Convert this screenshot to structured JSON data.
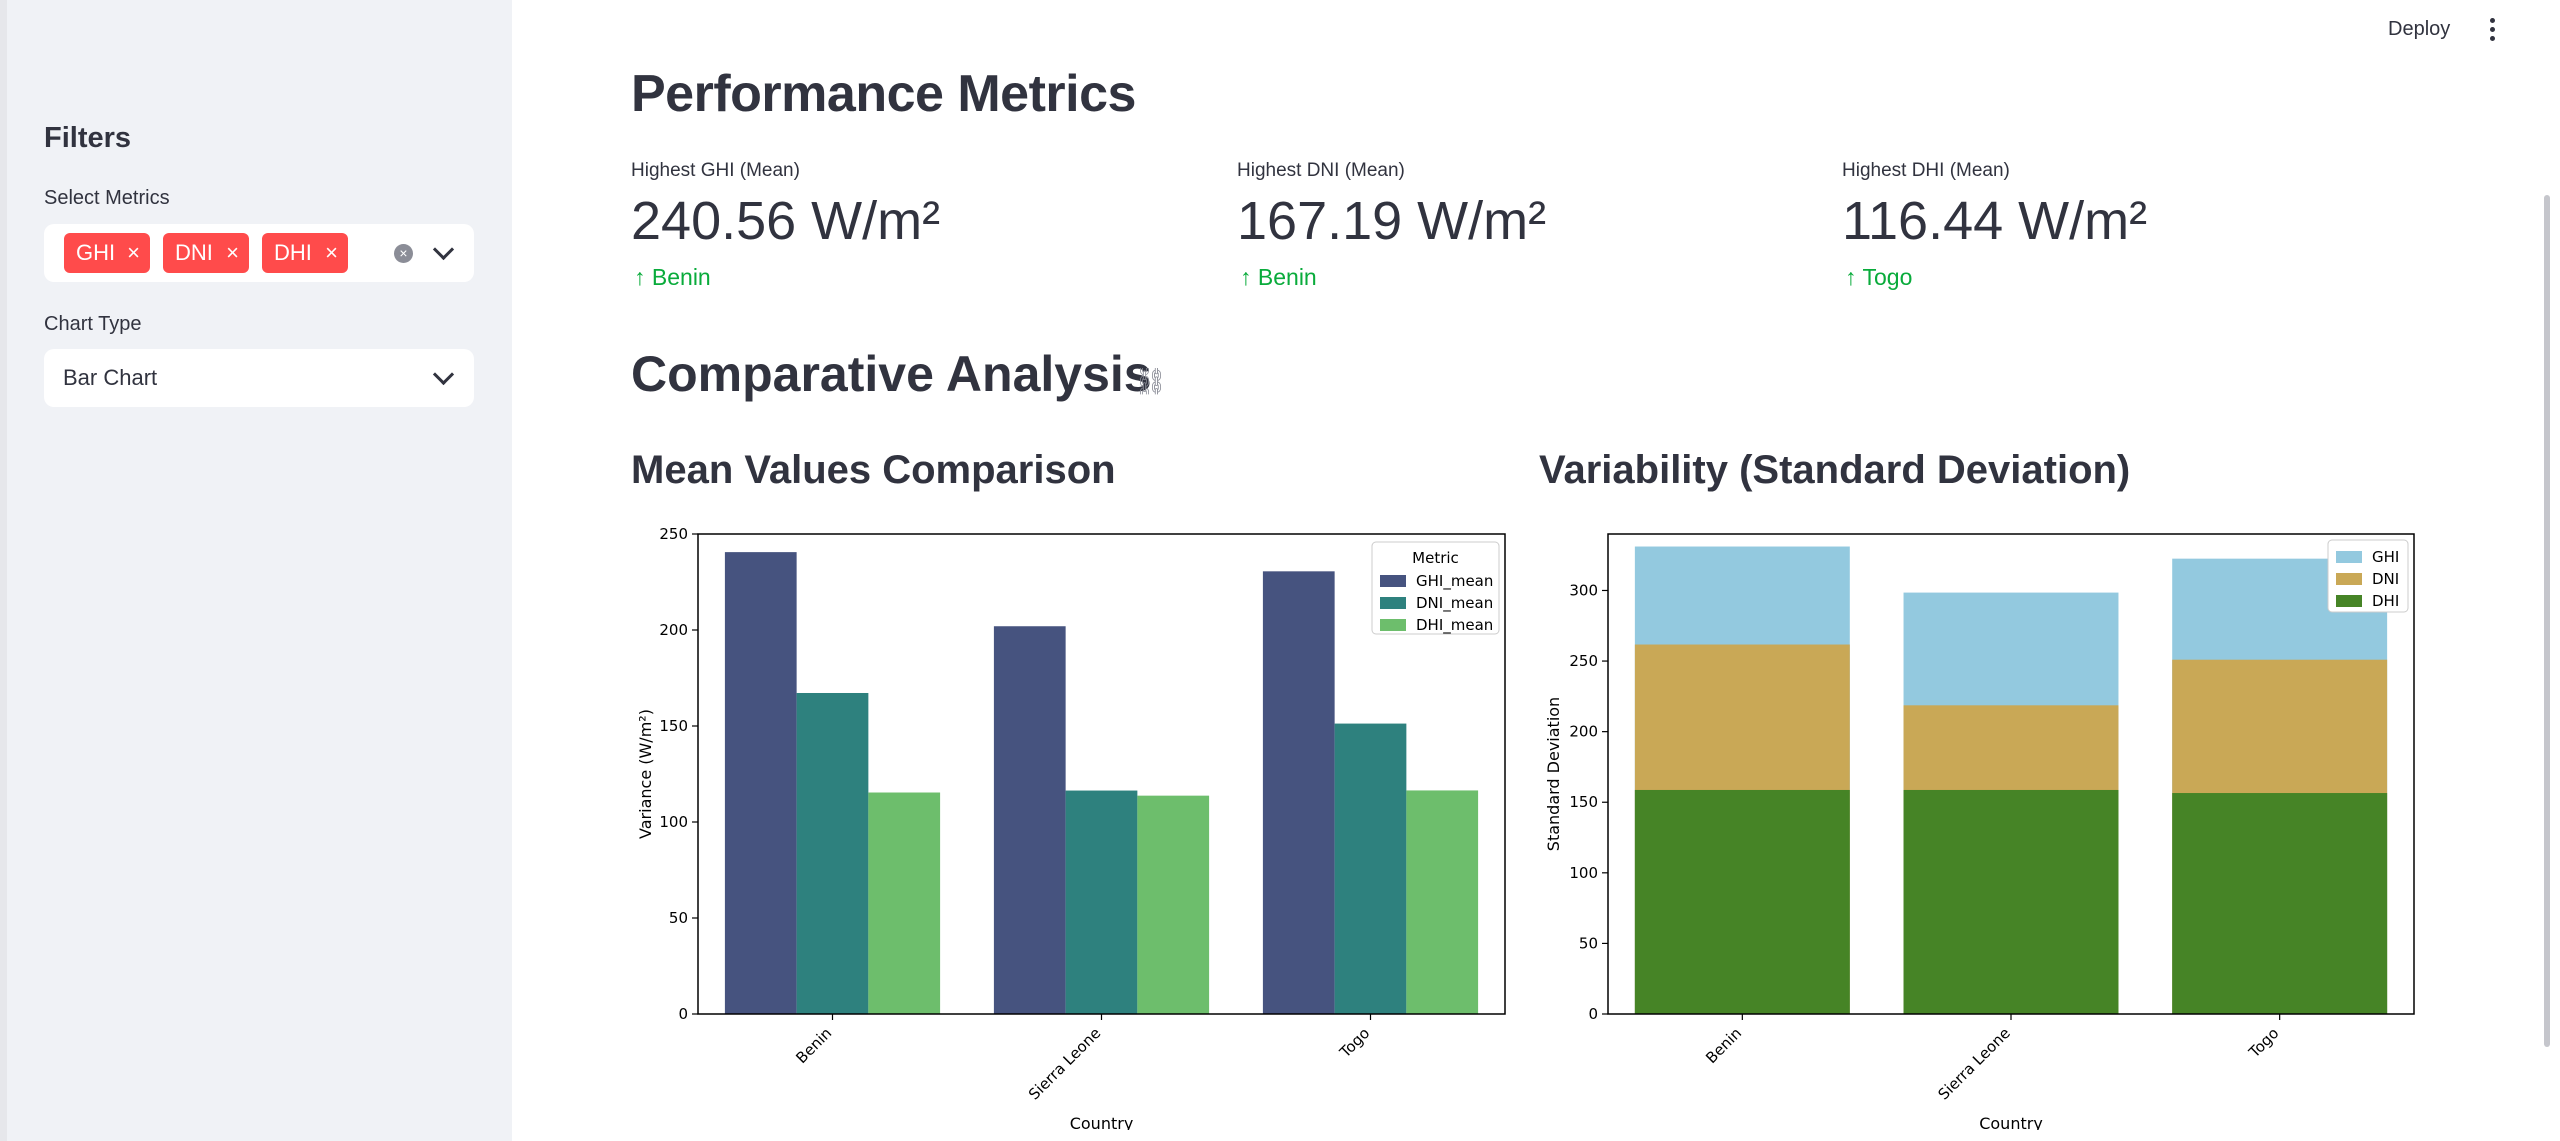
{
  "sidebar": {
    "title": "Filters",
    "metrics_label": "Select Metrics",
    "selected_metrics": [
      "GHI",
      "DNI",
      "DHI"
    ],
    "remove_symbol": "×",
    "clear_symbol": "×",
    "chart_type_label": "Chart Type",
    "chart_type_value": "Bar Chart"
  },
  "header": {
    "deploy_label": "Deploy"
  },
  "main": {
    "title": "Performance Metrics",
    "metrics": [
      {
        "label": "Highest GHI (Mean)",
        "value": "240.56 W/m²",
        "delta": "Benin"
      },
      {
        "label": "Highest DNI (Mean)",
        "value": "167.19 W/m²",
        "delta": "Benin"
      },
      {
        "label": "Highest DHI (Mean)",
        "value": "116.44 W/m²",
        "delta": "Togo"
      }
    ],
    "delta_arrow": "↑",
    "section_title": "Comparative Analysis",
    "link_glyph": "⛓",
    "left_chart_title": "Mean Values Comparison",
    "right_chart_title": "Variability (Standard Deviation)"
  },
  "colors": {
    "accent": "#ff4b4b",
    "delta_green": "#09ab3b"
  },
  "chart_data": [
    {
      "type": "bar",
      "categories": [
        "Benin",
        "Sierra Leone",
        "Togo"
      ],
      "series": [
        {
          "name": "GHI_mean",
          "values": [
            240.56,
            201.96,
            230.56
          ],
          "color": "#46537f"
        },
        {
          "name": "DNI_mean",
          "values": [
            167.19,
            116.38,
            151.26
          ],
          "color": "#2e817e"
        },
        {
          "name": "DHI_mean",
          "values": [
            115.36,
            113.72,
            116.44
          ],
          "color": "#6dbe6c"
        }
      ],
      "legend_title": "Metric",
      "legend_position": "top-right",
      "xlabel": "Country",
      "ylabel": "Variance (W/m²)",
      "ylim": [
        0,
        250
      ],
      "yticks": [
        0,
        50,
        100,
        150,
        200,
        250
      ],
      "grid": false
    },
    {
      "type": "bar",
      "stacking": "overlay",
      "categories": [
        "Benin",
        "Sierra Leone",
        "Togo"
      ],
      "series": [
        {
          "name": "GHI",
          "values": [
            331.13,
            298.5,
            322.53
          ],
          "color": "#93c9df"
        },
        {
          "name": "DNI",
          "values": [
            261.71,
            218.65,
            250.96
          ],
          "color": "#c9a856"
        },
        {
          "name": "DHI",
          "values": [
            158.69,
            158.69,
            156.52
          ],
          "color": "#468426"
        }
      ],
      "legend_position": "top-right",
      "xlabel": "Country",
      "ylabel": "Standard Deviation",
      "ylim": [
        0,
        340
      ],
      "yticks": [
        0,
        50,
        100,
        150,
        200,
        250,
        300
      ],
      "grid": false
    }
  ]
}
